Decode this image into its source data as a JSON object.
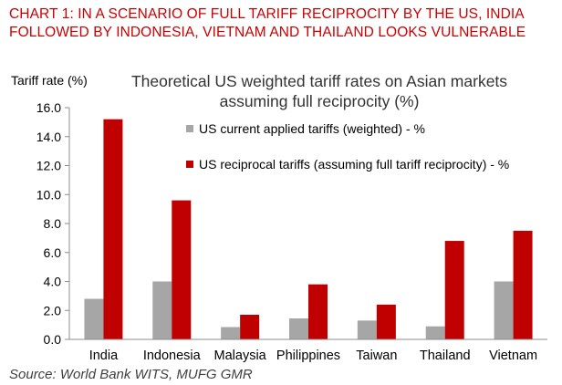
{
  "heading": {
    "line1": "CHART 1: IN A SCENARIO OF FULL TARIFF RECIPROCITY BY THE US, INDIA",
    "line2": "FOLLOWED BY INDONESIA, VIETNAM AND THAILAND LOOKS VULNERABLE"
  },
  "source": "Source: World Bank WITS, MUFG GMR",
  "colors": {
    "heading": "#cc0000",
    "current": "#a6a6a6",
    "reciprocal": "#c00000"
  },
  "chart_data": {
    "type": "bar",
    "title_lines": [
      "Theoretical US weighted tariff rates on Asian markets",
      "assuming full reciprocity (%)"
    ],
    "ylabel": "Tariff rate (%)",
    "xlabel": "",
    "ylim": [
      0,
      16
    ],
    "yticks": [
      "0.0",
      "2.0",
      "4.0",
      "6.0",
      "8.0",
      "10.0",
      "12.0",
      "14.0",
      "16.0"
    ],
    "grid": false,
    "legend_position": "top-right",
    "categories": [
      "India",
      "Indonesia",
      "Malaysia",
      "Philippines",
      "Taiwan",
      "Thailand",
      "Vietnam"
    ],
    "series": [
      {
        "name": "US current applied tariffs (weighted) - %",
        "color": "#a6a6a6",
        "values": [
          2.8,
          4.0,
          0.85,
          1.45,
          1.3,
          0.9,
          4.0
        ]
      },
      {
        "name": "US reciprocal tariffs (assuming full tariff reciprocity) - %",
        "color": "#c00000",
        "values": [
          15.2,
          9.6,
          1.7,
          3.8,
          2.4,
          6.8,
          7.5
        ]
      }
    ]
  }
}
